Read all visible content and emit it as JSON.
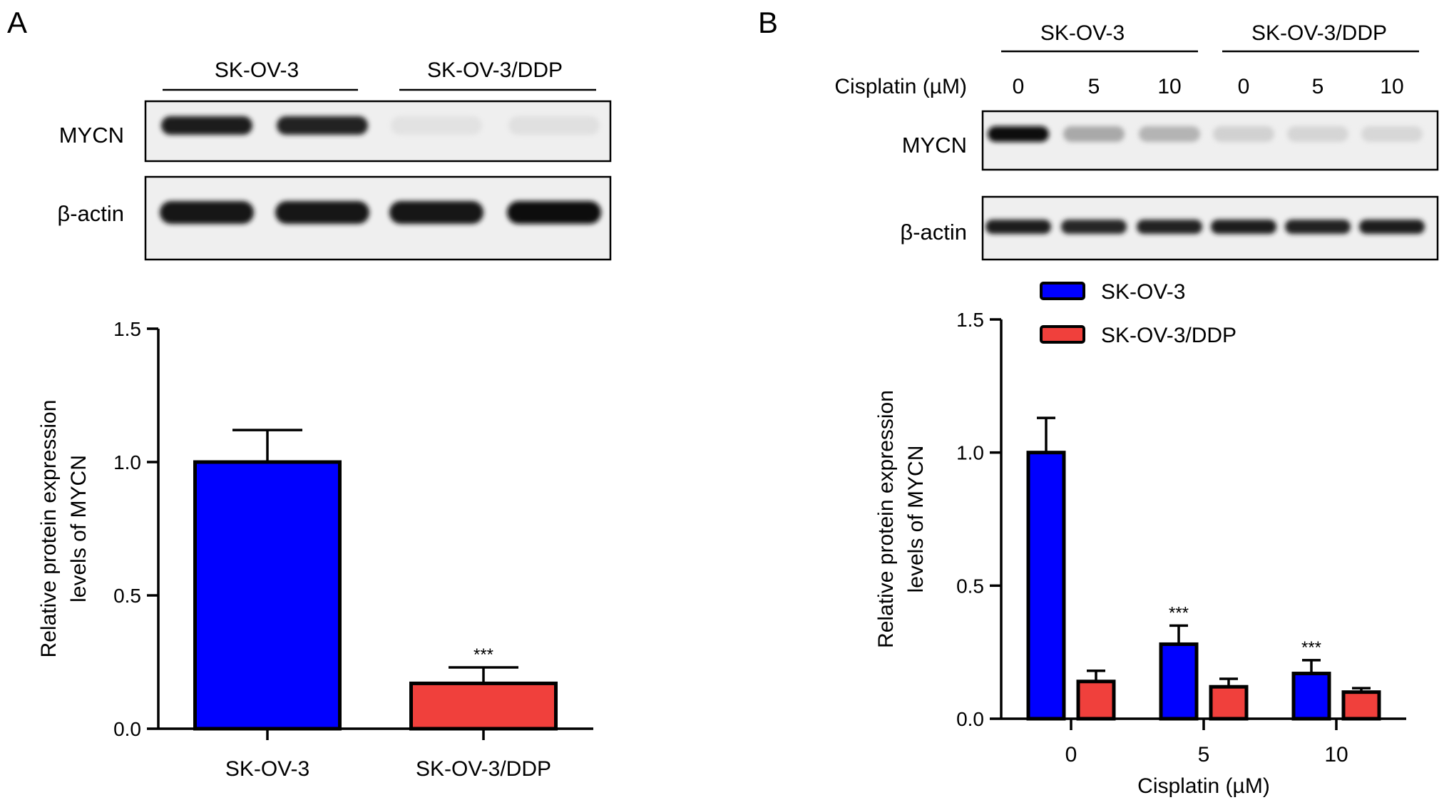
{
  "panels": {
    "a": {
      "letter": "A",
      "blot": {
        "groups": [
          "SK-OV-3",
          "SK-OV-3/DDP"
        ],
        "rows": [
          {
            "label": "MYCN",
            "intensities": [
              0.95,
              0.92,
              0.04,
              0.05
            ]
          },
          {
            "label": "β-actin",
            "intensities": [
              0.98,
              0.96,
              0.97,
              1.0
            ]
          }
        ]
      }
    },
    "b": {
      "letter": "B",
      "blot": {
        "groups": [
          "SK-OV-3",
          "SK-OV-3/DDP"
        ],
        "treatment_label": "Cisplatin (µM)",
        "lane_labels": [
          "0",
          "5",
          "10",
          "0",
          "5",
          "10"
        ],
        "rows": [
          {
            "label": "MYCN",
            "intensities": [
              1.0,
              0.3,
              0.25,
              0.12,
              0.1,
              0.09
            ]
          },
          {
            "label": "β-actin",
            "intensities": [
              0.95,
              0.9,
              0.92,
              0.93,
              0.92,
              0.95
            ]
          }
        ]
      }
    }
  },
  "colors": {
    "sk_ov_3": "#0000ff",
    "sk_ov_3_ddp": "#f0403c",
    "frame": "#000000"
  },
  "chart_data": [
    {
      "type": "bar",
      "panel": "A",
      "categories": [
        "SK-OV-3",
        "SK-OV-3/DDP"
      ],
      "series": [
        {
          "values": [
            1.0,
            0.17
          ],
          "errors": [
            0.12,
            0.06
          ],
          "colors": [
            "#0000ff",
            "#f0403c"
          ]
        }
      ],
      "ylabel_lines": [
        "Relative protein expression",
        "levels of MYCN"
      ],
      "xlabel": "",
      "ylim": [
        0,
        1.5
      ],
      "yticks": [
        0.0,
        0.5,
        1.0,
        1.5
      ],
      "ytick_labels": [
        "0.0",
        "0.5",
        "1.0",
        "1.5"
      ],
      "annotations": [
        {
          "category": "SK-OV-3/DDP",
          "text": "***"
        }
      ],
      "grid": false,
      "legend": "none"
    },
    {
      "type": "bar",
      "panel": "B",
      "categories": [
        "0",
        "5",
        "10"
      ],
      "series": [
        {
          "name": "SK-OV-3",
          "color": "#0000ff",
          "values": [
            1.0,
            0.28,
            0.17
          ],
          "errors": [
            0.13,
            0.07,
            0.05
          ]
        },
        {
          "name": "SK-OV-3/DDP",
          "color": "#f0403c",
          "values": [
            0.14,
            0.12,
            0.1
          ],
          "errors": [
            0.04,
            0.03,
            0.015
          ]
        }
      ],
      "xlabel": "Cisplatin (µM)",
      "ylabel_lines": [
        "Relative protein expression",
        "levels of MYCN"
      ],
      "ylim": [
        0,
        1.5
      ],
      "yticks": [
        0.0,
        0.5,
        1.0,
        1.5
      ],
      "ytick_labels": [
        "0.0",
        "0.5",
        "1.0",
        "1.5"
      ],
      "annotations": [
        {
          "category": "5",
          "series": "SK-OV-3",
          "text": "***"
        },
        {
          "category": "10",
          "series": "SK-OV-3",
          "text": "***"
        }
      ],
      "grid": false,
      "legend": "top-left"
    }
  ]
}
